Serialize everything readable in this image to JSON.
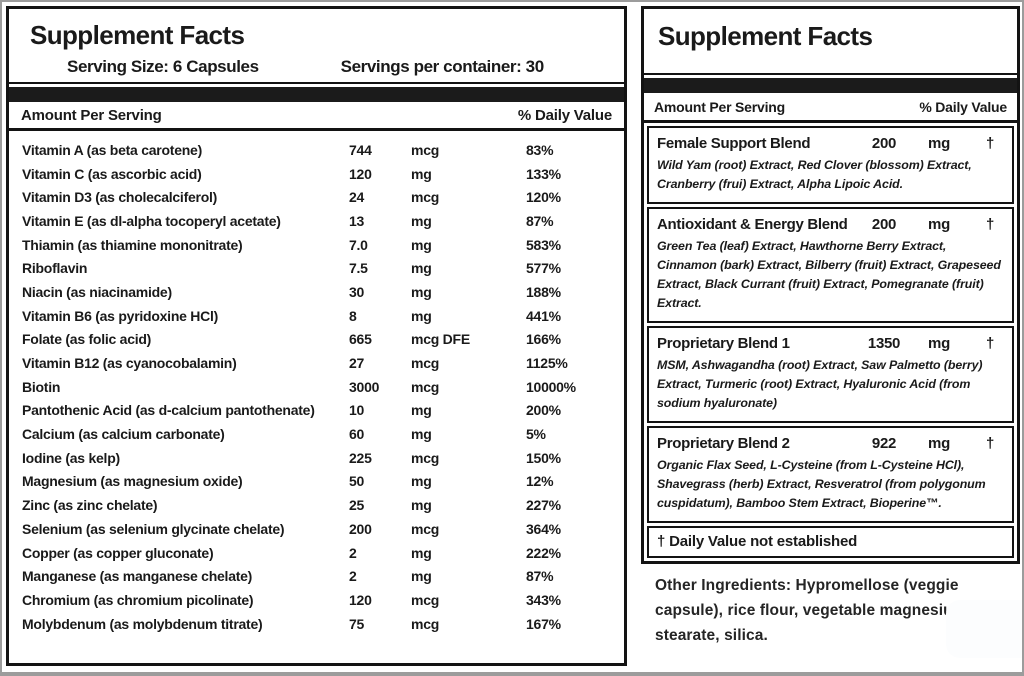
{
  "left_panel": {
    "title": "Supplement Facts",
    "serving_size": "Serving Size: 6 Capsules",
    "servings_per_container": "Servings per container: 30",
    "amount_header": "Amount Per Serving",
    "dv_header": "% Daily Value",
    "rows": [
      {
        "name": "Vitamin A (as beta carotene)",
        "amount": "744",
        "unit": "mcg",
        "dv": "83%"
      },
      {
        "name": "Vitamin C (as ascorbic acid)",
        "amount": "120",
        "unit": "mg",
        "dv": "133%"
      },
      {
        "name": "Vitamin D3 (as cholecalciferol)",
        "amount": "24",
        "unit": "mcg",
        "dv": "120%"
      },
      {
        "name": "Vitamin E (as dl-alpha tocoperyl acetate)",
        "amount": "13",
        "unit": "mg",
        "dv": "87%"
      },
      {
        "name": "Thiamin (as thiamine mononitrate)",
        "amount": "7.0",
        "unit": "mg",
        "dv": "583%"
      },
      {
        "name": "Riboflavin",
        "amount": "7.5",
        "unit": "mg",
        "dv": "577%"
      },
      {
        "name": "Niacin (as niacinamide)",
        "amount": "30",
        "unit": "mg",
        "dv": "188%"
      },
      {
        "name": "Vitamin B6 (as pyridoxine HCl)",
        "amount": "8",
        "unit": "mg",
        "dv": "441%"
      },
      {
        "name": "Folate (as folic acid)",
        "amount": "665",
        "unit": "mcg DFE",
        "dv": "166%"
      },
      {
        "name": "Vitamin B12 (as cyanocobalamin)",
        "amount": "27",
        "unit": "mcg",
        "dv": "1125%"
      },
      {
        "name": "Biotin",
        "amount": "3000",
        "unit": "mcg",
        "dv": "10000%"
      },
      {
        "name": "Pantothenic Acid (as d-calcium pantothenate)",
        "amount": "10",
        "unit": "mg",
        "dv": "200%"
      },
      {
        "name": "Calcium (as calcium carbonate)",
        "amount": "60",
        "unit": "mg",
        "dv": "5%"
      },
      {
        "name": "Iodine (as kelp)",
        "amount": "225",
        "unit": "mcg",
        "dv": "150%"
      },
      {
        "name": "Magnesium (as magnesium oxide)",
        "amount": "50",
        "unit": "mg",
        "dv": "12%"
      },
      {
        "name": "Zinc (as zinc chelate)",
        "amount": "25",
        "unit": "mg",
        "dv": "227%"
      },
      {
        "name": "Selenium (as selenium glycinate chelate)",
        "amount": "200",
        "unit": "mcg",
        "dv": "364%"
      },
      {
        "name": "Copper (as copper gluconate)",
        "amount": "2",
        "unit": "mg",
        "dv": "222%"
      },
      {
        "name": "Manganese (as manganese chelate)",
        "amount": "2",
        "unit": "mg",
        "dv": "87%"
      },
      {
        "name": "Chromium (as chromium picolinate)",
        "amount": "120",
        "unit": "mcg",
        "dv": "343%"
      },
      {
        "name": "Molybdenum (as molybdenum titrate)",
        "amount": "75",
        "unit": "mcg",
        "dv": "167%"
      }
    ]
  },
  "right_panel": {
    "title": "Supplement Facts",
    "amount_header": "Amount Per Serving",
    "dv_header": "% Daily Value",
    "blends": [
      {
        "name": "Female Support Blend",
        "amount": "200",
        "unit": "mg",
        "dv": "†",
        "description": "Wild Yam (root) Extract, Red Clover (blossom) Extract, Cranberry (frui) Extract, Alpha Lipoic Acid."
      },
      {
        "name": "Antioxidant & Energy Blend",
        "amount": "200",
        "unit": "mg",
        "dv": "†",
        "description": "Green Tea (leaf) Extract, Hawthorne Berry Extract, Cinnamon (bark) Extract, Bilberry (fruit) Extract, Grapeseed Extract, Black Currant (fruit) Extract, Pomegranate (fruit) Extract."
      },
      {
        "name": "Proprietary Blend 1",
        "amount": "1350",
        "unit": "mg",
        "dv": "†",
        "description": "MSM, Ashwagandha (root) Extract, Saw Palmetto (berry) Extract, Turmeric (root) Extract, Hyaluronic Acid (from sodium hyaluronate)"
      },
      {
        "name": "Proprietary Blend 2",
        "amount": "922",
        "unit": "mg",
        "dv": "†",
        "description": "Organic Flax Seed, L-Cysteine (from L-Cysteine HCl), Shavegrass (herb) Extract, Resveratrol (from polygonum cuspidatum), Bamboo Stem Extract, Bioperine™."
      }
    ],
    "footnote": "† Daily Value not established",
    "other_ingredients": "Other Ingredients: Hypromellose (veggie capsule), rice flour, vegetable magnesium stearate, silica."
  },
  "colors": {
    "ink": "#1a1a1a",
    "bar": "#1b1b1b",
    "frame": "#9c9c9c"
  }
}
